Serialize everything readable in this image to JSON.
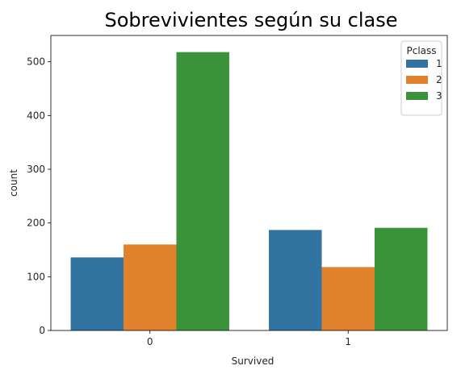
{
  "chart_data": {
    "type": "bar",
    "title": "Sobrevivientes según su clase",
    "xlabel": "Survived",
    "ylabel": "count",
    "categories": [
      "0",
      "1"
    ],
    "ylim": [
      0,
      549
    ],
    "yticks": [
      0,
      100,
      200,
      300,
      400,
      500
    ],
    "legend": {
      "title": "Pclass",
      "placement": "top-right"
    },
    "series": [
      {
        "name": "1",
        "values": [
          136,
          187
        ],
        "color": "#3274a1"
      },
      {
        "name": "2",
        "values": [
          160,
          118
        ],
        "color": "#e1812c"
      },
      {
        "name": "3",
        "values": [
          518,
          191
        ],
        "color": "#3a923a"
      }
    ]
  }
}
